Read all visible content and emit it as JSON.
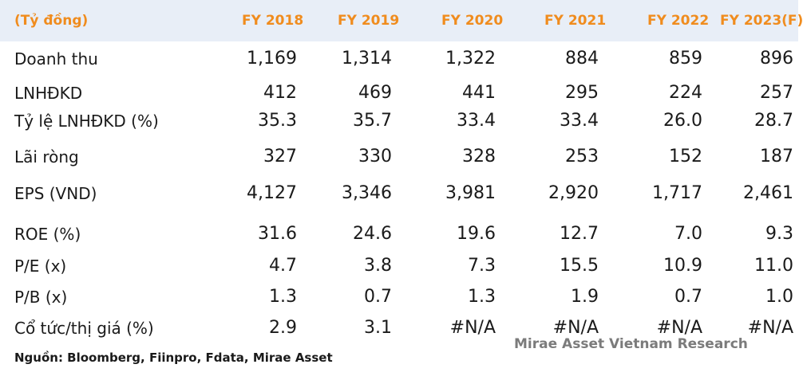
{
  "header": {
    "unit": "(Tỷ đồng)",
    "years": [
      "FY 2018",
      "FY 2019",
      "FY 2020",
      "FY 2021",
      "FY 2022",
      "FY 2023(F)"
    ]
  },
  "rows": [
    {
      "label": "Doanh thu",
      "values": [
        "1,169",
        "1,314",
        "1,322",
        "884",
        "859",
        "896"
      ]
    },
    {
      "label": "LNHĐKD",
      "values": [
        "412",
        "469",
        "441",
        "295",
        "224",
        "257"
      ]
    },
    {
      "label": "Tỷ lệ LNHĐKD (%)",
      "values": [
        "35.3",
        "35.7",
        "33.4",
        "33.4",
        "26.0",
        "28.7"
      ]
    },
    {
      "label": "Lãi ròng",
      "values": [
        "327",
        "330",
        "328",
        "253",
        "152",
        "187"
      ]
    },
    {
      "label": "EPS (VND)",
      "values": [
        "4,127",
        "3,346",
        "3,981",
        "2,920",
        "1,717",
        "2,461"
      ]
    },
    {
      "label": "ROE (%)",
      "values": [
        "31.6",
        "24.6",
        "19.6",
        "12.7",
        "7.0",
        "9.3"
      ]
    },
    {
      "label": "P/E (x)",
      "values": [
        "4.7",
        "3.8",
        "7.3",
        "15.5",
        "10.9",
        "11.0"
      ]
    },
    {
      "label": "P/B (x)",
      "values": [
        "1.3",
        "0.7",
        "1.3",
        "1.9",
        "0.7",
        "1.0"
      ]
    },
    {
      "label": "Cổ tức/thị giá (%)",
      "values": [
        "2.9",
        "3.1",
        "#N/A",
        "#N/A",
        "#N/A",
        "#N/A"
      ]
    }
  ],
  "source": "Nguồn: Bloomberg, Fiinpro, Fdata, Mirae Asset",
  "watermark": "Mirae Asset Vietnam Research"
}
